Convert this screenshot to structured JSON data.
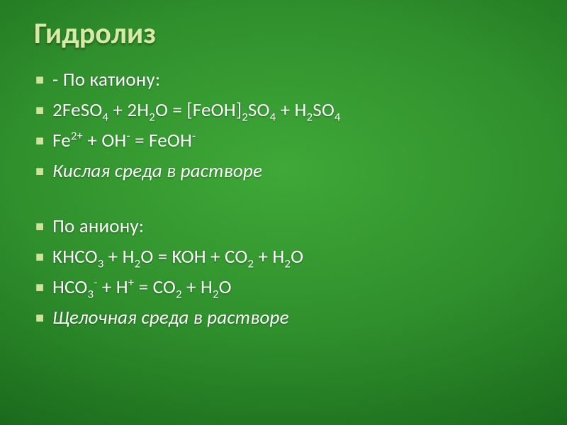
{
  "slide": {
    "title_text": "Гидролиз",
    "title_color": "#d6e9a6",
    "bullet_glyph": "■",
    "bullet_color": "#cfe39e",
    "text_color": "#ffffff",
    "background_gradient": {
      "type": "radial",
      "stops": [
        {
          "at": "0%",
          "color": "#3fa838"
        },
        {
          "at": "35%",
          "color": "#2f8f2c"
        },
        {
          "at": "62%",
          "color": "#1d6e1e"
        },
        {
          "at": "82%",
          "color": "#0e4f12"
        },
        {
          "at": "100%",
          "color": "#073a0c"
        }
      ]
    },
    "title_fontsize": 42,
    "body_fontsize": 27,
    "lines": [
      {
        "italic": false,
        "gap_after": false,
        "segments": [
          {
            "t": "- По катиону:"
          }
        ]
      },
      {
        "italic": false,
        "gap_after": false,
        "segments": [
          {
            "t": "2FeSO"
          },
          {
            "t": "4",
            "sub": true
          },
          {
            "t": " + 2H"
          },
          {
            "t": "2",
            "sub": true
          },
          {
            "t": "O = [FeOH]"
          },
          {
            "t": "2",
            "sub": true
          },
          {
            "t": "SO"
          },
          {
            "t": "4",
            "sub": true
          },
          {
            "t": " + H"
          },
          {
            "t": "2",
            "sub": true
          },
          {
            "t": "SO"
          },
          {
            "t": "4",
            "sub": true
          }
        ]
      },
      {
        "italic": false,
        "gap_after": false,
        "segments": [
          {
            "t": "Fe"
          },
          {
            "t": "2+",
            "sup": true
          },
          {
            "t": "  + OH"
          },
          {
            "t": "-",
            "sup": true
          },
          {
            "t": " = FeOH"
          },
          {
            "t": "-",
            "sup": true
          }
        ]
      },
      {
        "italic": true,
        "gap_after": true,
        "segments": [
          {
            "t": "Кислая среда в растворе"
          }
        ]
      },
      {
        "italic": false,
        "gap_after": false,
        "segments": [
          {
            "t": "По аниону:"
          }
        ]
      },
      {
        "italic": false,
        "gap_after": false,
        "segments": [
          {
            "t": "KHCO"
          },
          {
            "t": "3",
            "sub": true
          },
          {
            "t": " + H"
          },
          {
            "t": "2",
            "sub": true
          },
          {
            "t": "O = KOH + CO"
          },
          {
            "t": "2",
            "sub": true
          },
          {
            "t": " + H"
          },
          {
            "t": "2",
            "sub": true
          },
          {
            "t": "O"
          }
        ]
      },
      {
        "italic": false,
        "gap_after": false,
        "segments": [
          {
            "t": "HCO"
          },
          {
            "t": "3",
            "sub": true
          },
          {
            "t": "-",
            "sup": true
          },
          {
            "t": " + H"
          },
          {
            "t": "+",
            "sup": true
          },
          {
            "t": " = CO"
          },
          {
            "t": "2",
            "sub": true
          },
          {
            "t": " + H"
          },
          {
            "t": "2",
            "sub": true
          },
          {
            "t": "O"
          }
        ]
      },
      {
        "italic": true,
        "gap_after": false,
        "segments": [
          {
            "t": "Щелочная среда в растворе"
          }
        ]
      }
    ]
  }
}
